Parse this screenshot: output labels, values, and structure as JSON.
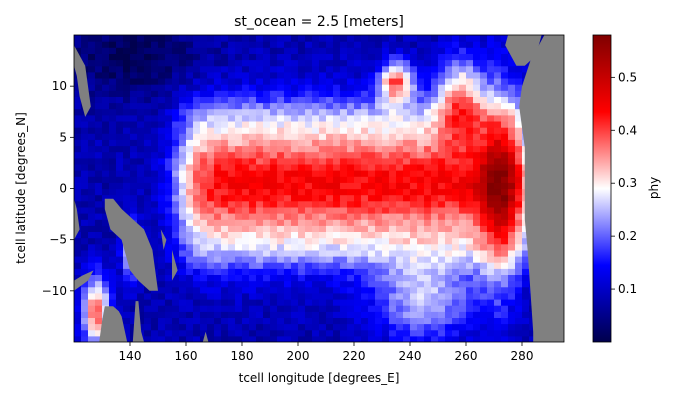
{
  "chart_data": {
    "type": "heatmap",
    "title": "st_ocean = 2.5 [meters]",
    "xlabel": "tcell longitude [degrees_E]",
    "ylabel": "tcell latitude [degrees_N]",
    "colorbar_label": "phy",
    "xlim": [
      120,
      295
    ],
    "ylim": [
      -15,
      15
    ],
    "x_ticks": [
      140,
      160,
      180,
      200,
      220,
      240,
      260,
      280
    ],
    "y_ticks": [
      -10,
      -5,
      0,
      5,
      10
    ],
    "colorbar_range": [
      0.0,
      0.58
    ],
    "colorbar_ticks": [
      0.1,
      0.2,
      0.3,
      0.4,
      0.5
    ],
    "colormap": "seismic",
    "colormap_colors": [
      "#00004c",
      "#0000ff",
      "#ffffff",
      "#ff0000",
      "#800000"
    ],
    "land_color": "#808080",
    "field_summary": {
      "value_range": [
        0.02,
        0.58
      ],
      "equatorial_max_band": {
        "lon_range": [
          155,
          280
        ],
        "lat_range": [
          -8,
          7
        ],
        "peak_value": 0.45
      },
      "low_values_region": [
        "northwest (120-200E, 5-15N)",
        "southwest (140-230E, -15 to -8N)"
      ],
      "land_areas": [
        "Indonesia / New Guinea (west)",
        "Central America (east)",
        "South America (east)"
      ]
    }
  }
}
